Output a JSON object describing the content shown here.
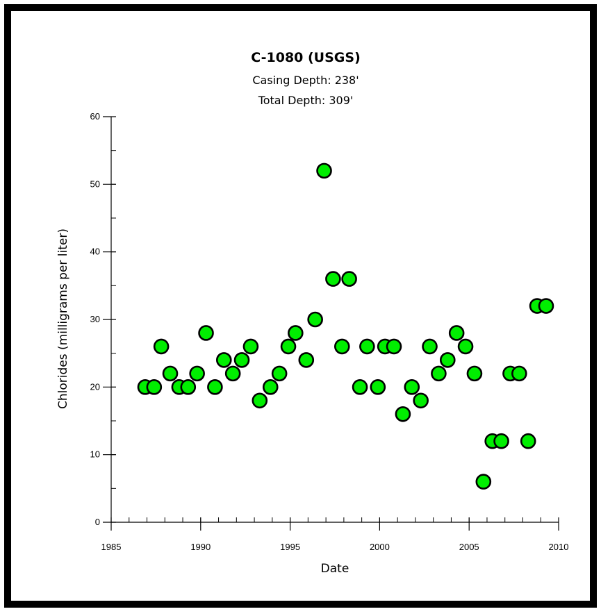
{
  "chart_data": {
    "type": "scatter",
    "title": "C-1080 (USGS)",
    "subtitle_lines": [
      "Casing Depth:  238'",
      "Total Depth:  309'"
    ],
    "xlabel": "Date",
    "ylabel": "Chlorides (milligrams per liter)",
    "xlim": [
      1985,
      2010
    ],
    "ylim": [
      0,
      60
    ],
    "x_ticks": [
      1985,
      1990,
      1995,
      2000,
      2005,
      2010
    ],
    "y_ticks": [
      0,
      10,
      20,
      30,
      40,
      50,
      60
    ],
    "x_minor_step": 1,
    "y_minor_step": 5,
    "grid": false,
    "legend": "none",
    "marker_fill": "#00ee00",
    "marker_edge": "#000000",
    "series": [
      {
        "x": [
          1986.9,
          1987.4,
          1987.8,
          1988.3,
          1988.8,
          1989.3,
          1989.8,
          1990.3,
          1990.8,
          1991.3,
          1991.8,
          1992.3,
          1992.8,
          1993.3,
          1993.9,
          1994.4,
          1994.9,
          1995.3,
          1995.9,
          1996.4,
          1996.9,
          1997.4,
          1997.9,
          1998.3,
          1998.9,
          1999.3,
          1999.9,
          2000.3,
          2000.8,
          2001.3,
          2001.8,
          2002.3,
          2002.8,
          2003.3,
          2003.8,
          2004.3,
          2004.8,
          2005.3,
          2005.8,
          2006.3,
          2006.8,
          2007.3,
          2007.8,
          2008.3,
          2008.8,
          2009.3
        ],
        "y": [
          20,
          20,
          26,
          22,
          20,
          20,
          22,
          28,
          20,
          24,
          22,
          24,
          26,
          18,
          20,
          22,
          26,
          28,
          24,
          30,
          52,
          36,
          26,
          36,
          20,
          26,
          20,
          26,
          26,
          16,
          20,
          18,
          26,
          22,
          24,
          28,
          26,
          22,
          6,
          12,
          12,
          22,
          22,
          12,
          32,
          32
        ]
      }
    ]
  }
}
